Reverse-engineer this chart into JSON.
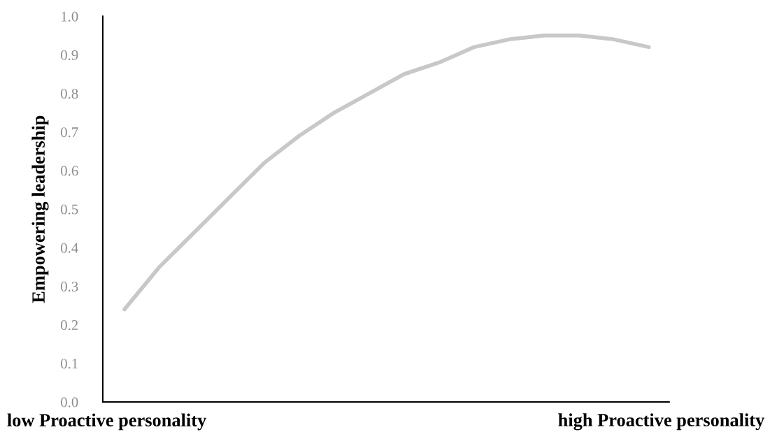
{
  "chart_data": {
    "type": "line",
    "ylabel": "Empowering leadership",
    "categories": [
      null,
      null,
      null,
      null,
      null,
      null,
      null,
      null,
      null,
      null,
      null,
      null,
      null,
      null,
      null,
      null
    ],
    "series": [
      {
        "color": "#c8c8c8",
        "values": [
          0.24,
          0.35,
          0.44,
          0.53,
          0.62,
          0.69,
          0.75,
          0.8,
          0.85,
          0.88,
          0.92,
          0.94,
          0.95,
          0.95,
          0.94,
          0.92
        ]
      }
    ],
    "ylim": [
      0,
      1.0
    ],
    "yticks": [
      {
        "value": 0,
        "label": "0.0"
      },
      {
        "value": 0.1,
        "label": "0.1"
      },
      {
        "value": 0.2,
        "label": "0.2"
      },
      {
        "value": 0.3,
        "label": "0.3"
      },
      {
        "value": 0.4,
        "label": "0.4"
      },
      {
        "value": 0.5,
        "label": "0.5"
      },
      {
        "value": 0.6,
        "label": "0.6"
      },
      {
        "value": 0.7,
        "label": "0.7"
      },
      {
        "value": 0.8,
        "label": "0.8"
      },
      {
        "value": 0.9,
        "label": "0.9"
      },
      {
        "value": 1.0,
        "label": "1.0"
      }
    ],
    "tick_labels": "y",
    "grid": false,
    "legend": false,
    "marker": "none",
    "line_style": "solid",
    "annotations": [
      "low Proactive personality",
      "high Proactive personality"
    ]
  }
}
